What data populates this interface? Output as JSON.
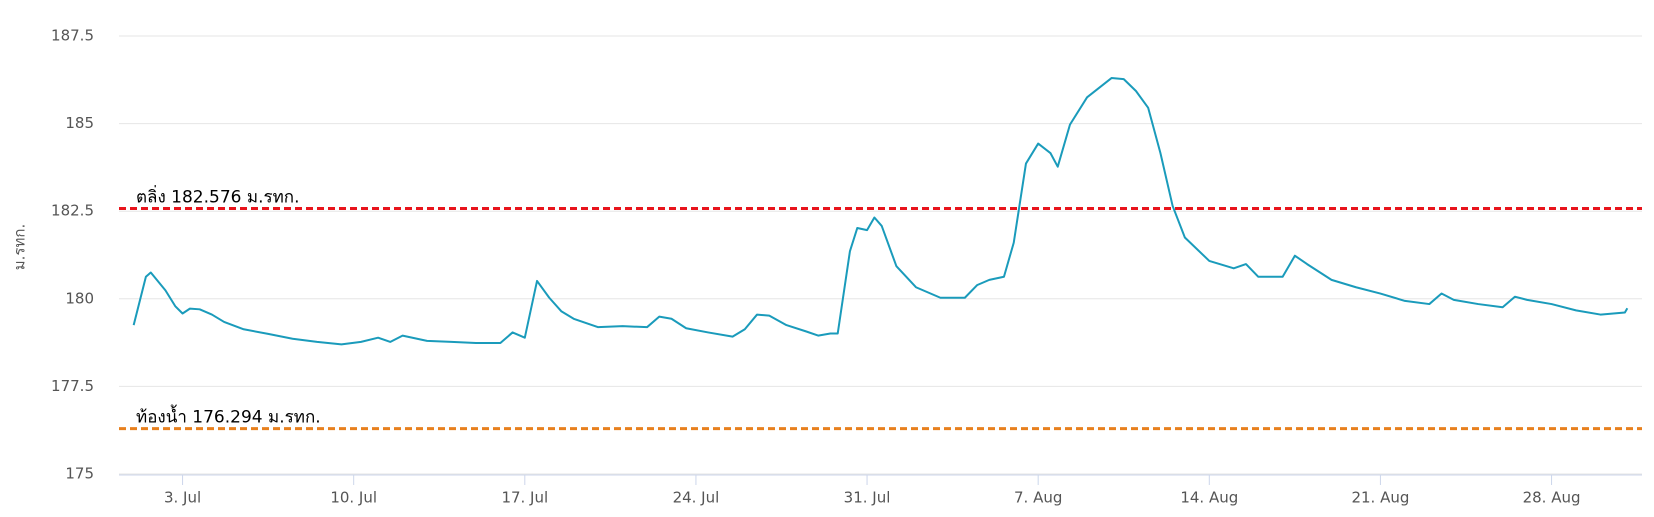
{
  "chart_data": {
    "type": "line",
    "y_label": "ม.รทก.",
    "x": [
      1.0,
      1.5,
      1.7,
      2.3,
      2.7,
      3.0,
      3.3,
      3.7,
      4.2,
      4.7,
      5.5,
      6.5,
      7.5,
      8.5,
      9.5,
      10.3,
      11,
      11.5,
      12,
      13,
      14,
      15,
      16,
      16.5,
      17,
      17.5,
      18,
      18.5,
      19,
      20,
      21,
      22,
      22.5,
      23,
      23.6,
      24.5,
      25.5,
      26,
      26.5,
      27,
      27.7,
      28.5,
      29,
      29.5,
      29.8,
      30.3,
      30.6,
      31,
      31.3,
      31.6,
      32.2,
      33,
      34,
      35,
      35.5,
      36,
      36.6,
      37,
      37.5,
      38,
      38.5,
      38.8,
      39.3,
      40,
      41,
      41.5,
      42,
      42.5,
      43,
      43.5,
      44,
      45,
      46,
      46.5,
      47,
      48,
      48.5,
      49,
      50,
      51,
      52,
      53,
      54,
      54.5,
      55,
      56,
      57,
      57.5,
      58,
      59,
      60,
      61,
      62,
      62.1
    ],
    "series": [
      {
        "color": "#1a9bbb",
        "values": [
          179.25,
          180.63,
          180.75,
          180.24,
          179.79,
          179.58,
          179.72,
          179.7,
          179.55,
          179.34,
          179.13,
          179.0,
          178.86,
          178.77,
          178.7,
          178.77,
          178.89,
          178.77,
          178.95,
          178.8,
          178.77,
          178.74,
          178.74,
          179.04,
          178.89,
          180.51,
          180.03,
          179.64,
          179.43,
          179.19,
          179.22,
          179.19,
          179.49,
          179.43,
          179.16,
          179.04,
          178.92,
          179.13,
          179.55,
          179.52,
          179.25,
          179.07,
          178.95,
          179.01,
          179.01,
          181.36,
          182.02,
          181.96,
          182.32,
          182.08,
          180.93,
          180.33,
          180.03,
          180.03,
          180.39,
          180.54,
          180.63,
          181.6,
          183.86,
          184.43,
          184.16,
          183.77,
          184.97,
          185.75,
          186.3,
          186.27,
          185.93,
          185.45,
          184.16,
          182.65,
          181.75,
          181.08,
          180.87,
          180.99,
          180.63,
          180.63,
          181.23,
          180.99,
          180.54,
          180.33,
          180.15,
          179.94,
          179.85,
          180.15,
          179.97,
          179.85,
          179.76,
          180.06,
          179.97,
          179.85,
          179.67,
          179.55,
          179.61,
          179.73
        ]
      }
    ],
    "xlim": [
      0.4,
      62.7
    ],
    "xticks": [
      {
        "value": 3,
        "label": "3. Jul"
      },
      {
        "value": 10,
        "label": "10. Jul"
      },
      {
        "value": 17,
        "label": "17. Jul"
      },
      {
        "value": 24,
        "label": "24. Jul"
      },
      {
        "value": 31,
        "label": "31. Jul"
      },
      {
        "value": 38,
        "label": "7. Aug"
      },
      {
        "value": 45,
        "label": "14. Aug"
      },
      {
        "value": 52,
        "label": "21. Aug"
      },
      {
        "value": 59,
        "label": "28. Aug"
      }
    ],
    "ylim": [
      175,
      187.5
    ],
    "yticks": [
      175,
      177.5,
      180,
      182.5,
      185,
      187.5
    ],
    "grid": true,
    "reference_lines": [
      {
        "label": "ตลิ่ง 182.576 ม.รทก.",
        "value": 182.576,
        "color": "#e8141c"
      },
      {
        "label": "ท้องน้ำ 176.294 ม.รทก.",
        "value": 176.294,
        "color": "#e8801e"
      }
    ]
  }
}
